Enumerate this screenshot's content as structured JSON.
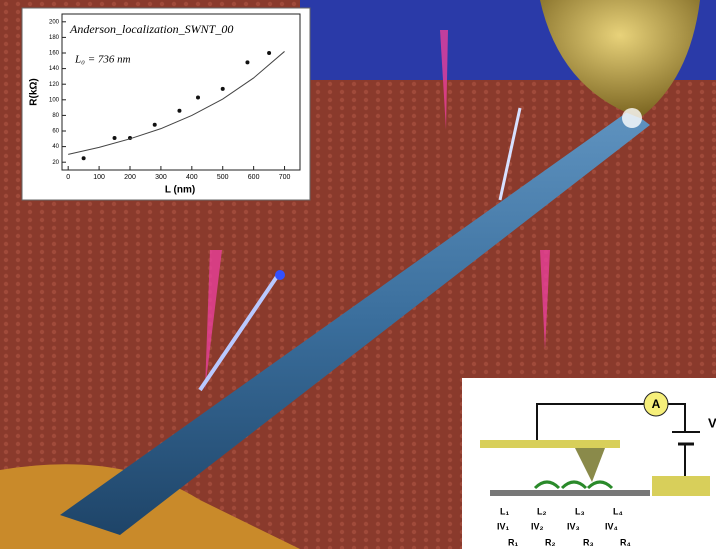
{
  "chart_data": {
    "type": "scatter",
    "title": "Anderson_localization_SWNT_00",
    "annotation": "L₀ = 736 nm",
    "x_label": "L (nm)",
    "y_label": "R(kΩ)",
    "series": [
      {
        "color": "#111111",
        "x": [
          50,
          150,
          200,
          280,
          360,
          420,
          500,
          580,
          650
        ],
        "values": [
          25,
          51,
          51,
          68,
          86,
          103,
          114,
          148,
          160
        ]
      },
      {
        "color": "#444444",
        "x": [
          0,
          100,
          200,
          300,
          400,
          500,
          600,
          700
        ],
        "values": [
          30,
          39,
          50,
          63,
          80,
          101,
          128,
          162
        ],
        "line": true
      }
    ],
    "xlim": [
      -20,
      750
    ],
    "ylim": [
      10,
      210
    ],
    "xticks": [
      0,
      100,
      200,
      300,
      400,
      500,
      600,
      700
    ],
    "yticks": [
      20,
      40,
      60,
      80,
      100,
      120,
      140,
      160,
      180,
      200
    ]
  },
  "circuit": {
    "meter": "A",
    "source": "V",
    "labels": [
      [
        "L₁",
        "L₂",
        "L₃",
        "L₄"
      ],
      [
        "IV₁",
        "IV₂",
        "IV₃",
        "IV₄"
      ],
      [
        "R₁",
        "R₂",
        "R₃",
        "R₄"
      ]
    ]
  }
}
